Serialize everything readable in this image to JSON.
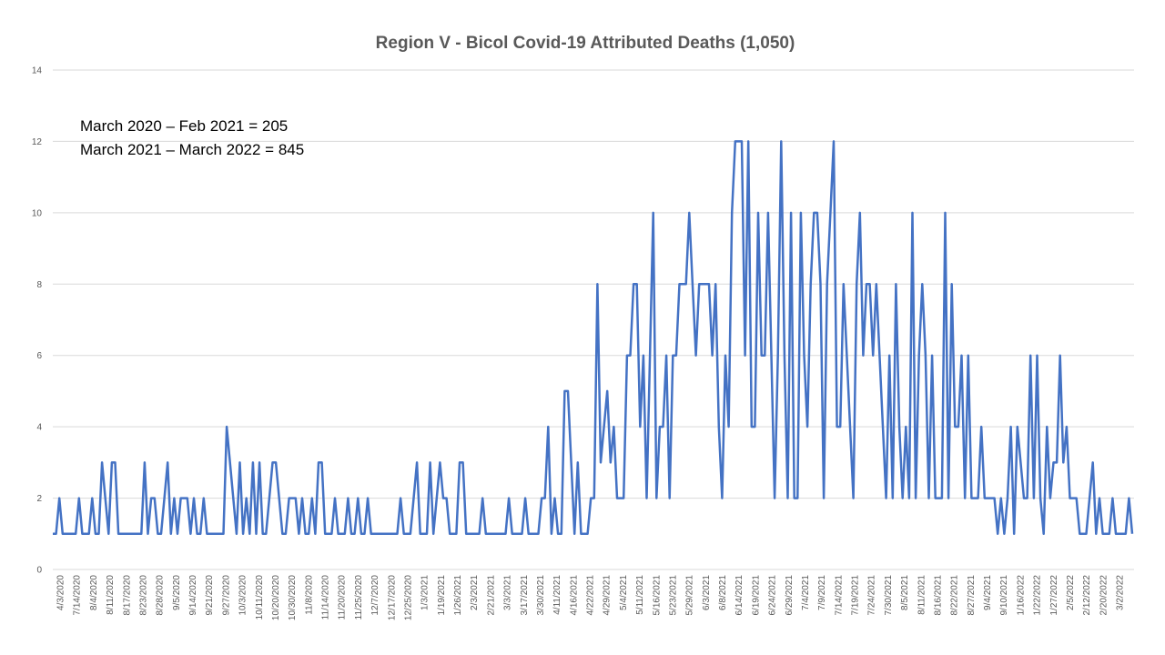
{
  "chart_data": {
    "type": "line",
    "title": "Region V - Bicol  Covid-19 Attributed Deaths (1,050)",
    "xlabel": "",
    "ylabel": "",
    "ylim": [
      0,
      14
    ],
    "yticks": [
      0,
      2,
      4,
      6,
      8,
      10,
      12,
      14
    ],
    "grid": true,
    "legend": "none",
    "line_color": "#4472C4",
    "annotations": [
      "March 2020 – Feb 2021 = 205",
      "March 2021 – March 2022 =  845"
    ],
    "xtick_labels": [
      "4/3/2020",
      "7/14/2020",
      "8/4/2020",
      "8/11/2020",
      "8/17/2020",
      "8/23/2020",
      "8/28/2020",
      "9/5/2020",
      "9/14/2020",
      "9/21/2020",
      "9/27/2020",
      "10/3/2020",
      "10/11/2020",
      "10/20/2020",
      "10/30/2020",
      "11/8/2020",
      "11/14/2020",
      "11/20/2020",
      "11/25/2020",
      "12/7/2020",
      "12/17/2020",
      "12/25/2020",
      "1/3/2021",
      "1/19/2021",
      "1/26/2021",
      "2/3/2021",
      "2/21/2021",
      "3/3/2021",
      "3/17/2021",
      "3/30/2021",
      "4/11/2021",
      "4/16/2021",
      "4/22/2021",
      "4/29/2021",
      "5/4/2021",
      "5/11/2021",
      "5/16/2021",
      "5/23/2021",
      "5/29/2021",
      "6/3/2021",
      "6/8/2021",
      "6/14/2021",
      "6/19/2021",
      "6/24/2021",
      "6/29/2021",
      "7/4/2021",
      "7/9/2021",
      "7/14/2021",
      "7/19/2021",
      "7/24/2021",
      "7/30/2021",
      "8/5/2021",
      "8/11/2021",
      "8/16/2021",
      "8/22/2021",
      "8/27/2021",
      "9/4/2021",
      "9/10/2021",
      "1/16/2022",
      "1/22/2022",
      "1/27/2022",
      "2/5/2022",
      "2/12/2022",
      "2/20/2022",
      "3/2/2022"
    ],
    "series": [
      {
        "values": [
          1,
          1,
          2,
          1,
          1,
          1,
          1,
          1,
          2,
          1,
          1,
          1,
          2,
          1,
          1,
          3,
          2,
          1,
          3,
          3,
          1,
          1,
          1,
          1,
          1,
          1,
          1,
          1,
          3,
          1,
          2,
          2,
          1,
          1,
          2,
          3,
          1,
          2,
          1,
          2,
          2,
          2,
          1,
          2,
          1,
          1,
          2,
          1,
          1,
          1,
          1,
          1,
          1,
          4,
          3,
          2,
          1,
          3,
          1,
          2,
          1,
          3,
          1,
          3,
          1,
          1,
          2,
          3,
          3,
          2,
          1,
          1,
          2,
          2,
          2,
          1,
          2,
          1,
          1,
          2,
          1,
          3,
          3,
          1,
          1,
          1,
          2,
          1,
          1,
          1,
          2,
          1,
          1,
          2,
          1,
          1,
          2,
          1,
          1,
          1,
          1,
          1,
          1,
          1,
          1,
          1,
          2,
          1,
          1,
          1,
          2,
          3,
          1,
          1,
          1,
          3,
          1,
          2,
          3,
          2,
          2,
          1,
          1,
          1,
          3,
          3,
          1,
          1,
          1,
          1,
          1,
          2,
          1,
          1,
          1,
          1,
          1,
          1,
          1,
          2,
          1,
          1,
          1,
          1,
          2,
          1,
          1,
          1,
          1,
          2,
          2,
          4,
          1,
          2,
          1,
          1,
          5,
          5,
          3,
          1,
          3,
          1,
          1,
          1,
          2,
          2,
          8,
          3,
          4,
          5,
          3,
          4,
          2,
          2,
          2,
          6,
          6,
          8,
          8,
          4,
          6,
          2,
          6,
          10,
          2,
          4,
          4,
          6,
          2,
          6,
          6,
          8,
          8,
          8,
          10,
          8,
          6,
          8,
          8,
          8,
          8,
          6,
          8,
          4,
          2,
          6,
          4,
          10,
          12,
          12,
          12,
          6,
          12,
          4,
          4,
          10,
          6,
          6,
          10,
          6,
          2,
          6,
          12,
          6,
          2,
          10,
          2,
          2,
          10,
          6,
          4,
          8,
          10,
          10,
          8,
          2,
          8,
          10,
          12,
          4,
          4,
          8,
          6,
          4,
          2,
          8,
          10,
          6,
          8,
          8,
          6,
          8,
          6,
          4,
          2,
          6,
          2,
          8,
          4,
          2,
          4,
          2,
          10,
          2,
          6,
          8,
          6,
          2,
          6,
          2,
          2,
          2,
          10,
          2,
          8,
          4,
          4,
          6,
          2,
          6,
          2,
          2,
          2,
          4,
          2,
          2,
          2,
          2,
          1,
          2,
          1,
          2,
          4,
          1,
          4,
          3,
          2,
          2,
          6,
          2,
          6,
          2,
          1,
          4,
          2,
          3,
          3,
          6,
          3,
          4,
          2,
          2,
          2,
          1,
          1,
          1,
          2,
          3,
          1,
          2,
          1,
          1,
          1,
          2,
          1,
          1,
          1,
          1,
          2,
          1
        ]
      }
    ]
  }
}
